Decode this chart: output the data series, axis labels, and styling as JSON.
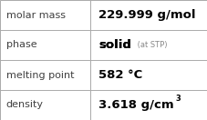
{
  "rows": [
    {
      "label": "molar mass",
      "value": "229.999 g/mol",
      "type": "plain"
    },
    {
      "label": "phase",
      "value": "solid",
      "suffix": " (at STP)",
      "type": "suffix"
    },
    {
      "label": "melting point",
      "value": "582 °C",
      "type": "plain"
    },
    {
      "label": "density",
      "value": "3.618 g/cm",
      "superscript": "3",
      "type": "super"
    }
  ],
  "background_color": "#ffffff",
  "border_color": "#aaaaaa",
  "label_color": "#404040",
  "value_color": "#000000",
  "suffix_color": "#888888",
  "label_fontsize": 8.0,
  "value_fontsize": 9.5,
  "suffix_fontsize": 6.0,
  "super_fontsize": 6.0,
  "col_split": 0.435,
  "fig_width": 2.28,
  "fig_height": 1.32,
  "dpi": 100
}
